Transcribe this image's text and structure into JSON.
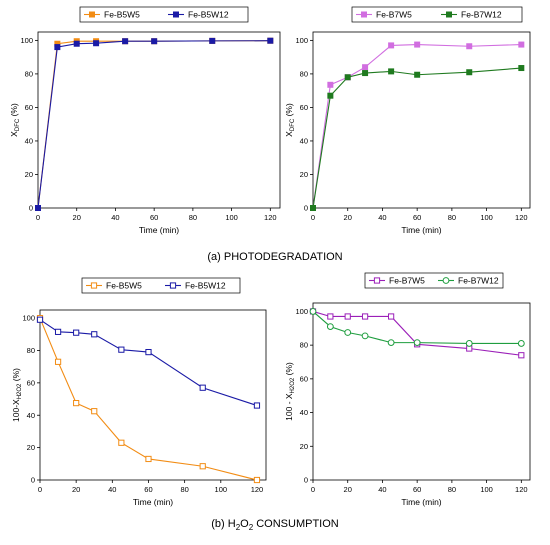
{
  "captions": {
    "top": "(a) PHOTODEGRADATION",
    "bottom_prefix": "(b) H",
    "bottom_sub": "2",
    "bottom_mid": "O",
    "bottom_sub2": "2",
    "bottom_suffix": " CONSUMPTION"
  },
  "chart_data": [
    {
      "type": "line",
      "panel": "a-left",
      "xlabel": "Time (min)",
      "ylabel_main": "X",
      "ylabel_sub": "DFC",
      "ylabel_tail": " (%)",
      "xlim": [
        0,
        125
      ],
      "ylim": [
        0,
        105
      ],
      "xticks": [
        0,
        20,
        40,
        60,
        80,
        100,
        120
      ],
      "yticks": [
        0,
        20,
        40,
        60,
        80,
        100
      ],
      "legend": "top, boxed",
      "series": [
        {
          "name": "Fe-B5W5",
          "color": "#f28c14",
          "marker": "square-filled",
          "x": [
            0,
            10,
            20,
            30,
            45,
            60,
            90,
            120
          ],
          "y": [
            0,
            98,
            99.5,
            99.5,
            99.5,
            99.5,
            99.7,
            99.8
          ]
        },
        {
          "name": "Fe-B5W12",
          "color": "#1a1aa6",
          "marker": "square-filled",
          "x": [
            0,
            10,
            20,
            30,
            45,
            60,
            90,
            120
          ],
          "y": [
            0,
            96,
            98,
            98.3,
            99.5,
            99.5,
            99.7,
            99.8
          ]
        }
      ]
    },
    {
      "type": "line",
      "panel": "a-right",
      "xlabel": "Time (min)",
      "ylabel_main": "X",
      "ylabel_sub": "DFC",
      "ylabel_tail": " (%)",
      "xlim": [
        0,
        125
      ],
      "ylim": [
        0,
        105
      ],
      "xticks": [
        0,
        20,
        40,
        60,
        80,
        100,
        120
      ],
      "yticks": [
        0,
        20,
        40,
        60,
        80,
        100
      ],
      "legend": "top, boxed",
      "series": [
        {
          "name": "Fe-B7W5",
          "color": "#d16ee0",
          "marker": "square-filled",
          "x": [
            0,
            10,
            20,
            30,
            45,
            60,
            90,
            120
          ],
          "y": [
            0,
            73.5,
            78,
            84,
            97,
            97.5,
            96.5,
            97.5
          ]
        },
        {
          "name": "Fe-B7W12",
          "color": "#1f7a1f",
          "marker": "square-filled",
          "x": [
            0,
            10,
            20,
            30,
            45,
            60,
            90,
            120
          ],
          "y": [
            0,
            67,
            78,
            80.5,
            81.5,
            79.5,
            81,
            83.5
          ]
        }
      ]
    },
    {
      "type": "line",
      "panel": "b-left",
      "xlabel": "Time (min)",
      "ylabel_main": "100-X",
      "ylabel_sub": "H2O2",
      "ylabel_tail": " (%)",
      "xlim": [
        0,
        125
      ],
      "ylim": [
        0,
        105
      ],
      "xticks": [
        0,
        20,
        40,
        60,
        80,
        100,
        120
      ],
      "yticks": [
        0,
        20,
        40,
        60,
        80,
        100
      ],
      "legend": "top, boxed",
      "series": [
        {
          "name": "Fe-B5W5",
          "color": "#f28c14",
          "marker": "square-open",
          "x": [
            0,
            10,
            20,
            30,
            45,
            60,
            90,
            120
          ],
          "y": [
            100,
            73,
            47.5,
            42.5,
            23,
            13,
            8.5,
            0
          ]
        },
        {
          "name": "Fe-B5W12",
          "color": "#1a1aa6",
          "marker": "square-open",
          "x": [
            0,
            10,
            20,
            30,
            45,
            60,
            90,
            120
          ],
          "y": [
            99,
            91.5,
            91,
            90,
            80.5,
            79,
            57,
            46
          ]
        }
      ]
    },
    {
      "type": "line",
      "panel": "b-right",
      "xlabel": "Time (min)",
      "ylabel_main": "100 - X",
      "ylabel_sub": "H2O2",
      "ylabel_tail": " (%)",
      "xlim": [
        0,
        125
      ],
      "ylim": [
        0,
        105
      ],
      "xticks": [
        0,
        20,
        40,
        60,
        80,
        100,
        120
      ],
      "yticks": [
        0,
        20,
        40,
        60,
        80,
        100
      ],
      "legend": "top, boxed",
      "series": [
        {
          "name": "Fe-B7W5",
          "color": "#9b1fb8",
          "marker": "square-open",
          "x": [
            0,
            10,
            20,
            30,
            45,
            60,
            90,
            120
          ],
          "y": [
            100,
            97,
            97,
            97,
            97,
            80.5,
            78,
            74
          ]
        },
        {
          "name": "Fe-B7W12",
          "color": "#1f9e3f",
          "marker": "circle-open",
          "x": [
            0,
            10,
            20,
            30,
            45,
            60,
            90,
            120
          ],
          "y": [
            100,
            91,
            87.5,
            85.5,
            81.5,
            81.5,
            81,
            81
          ]
        }
      ]
    }
  ]
}
